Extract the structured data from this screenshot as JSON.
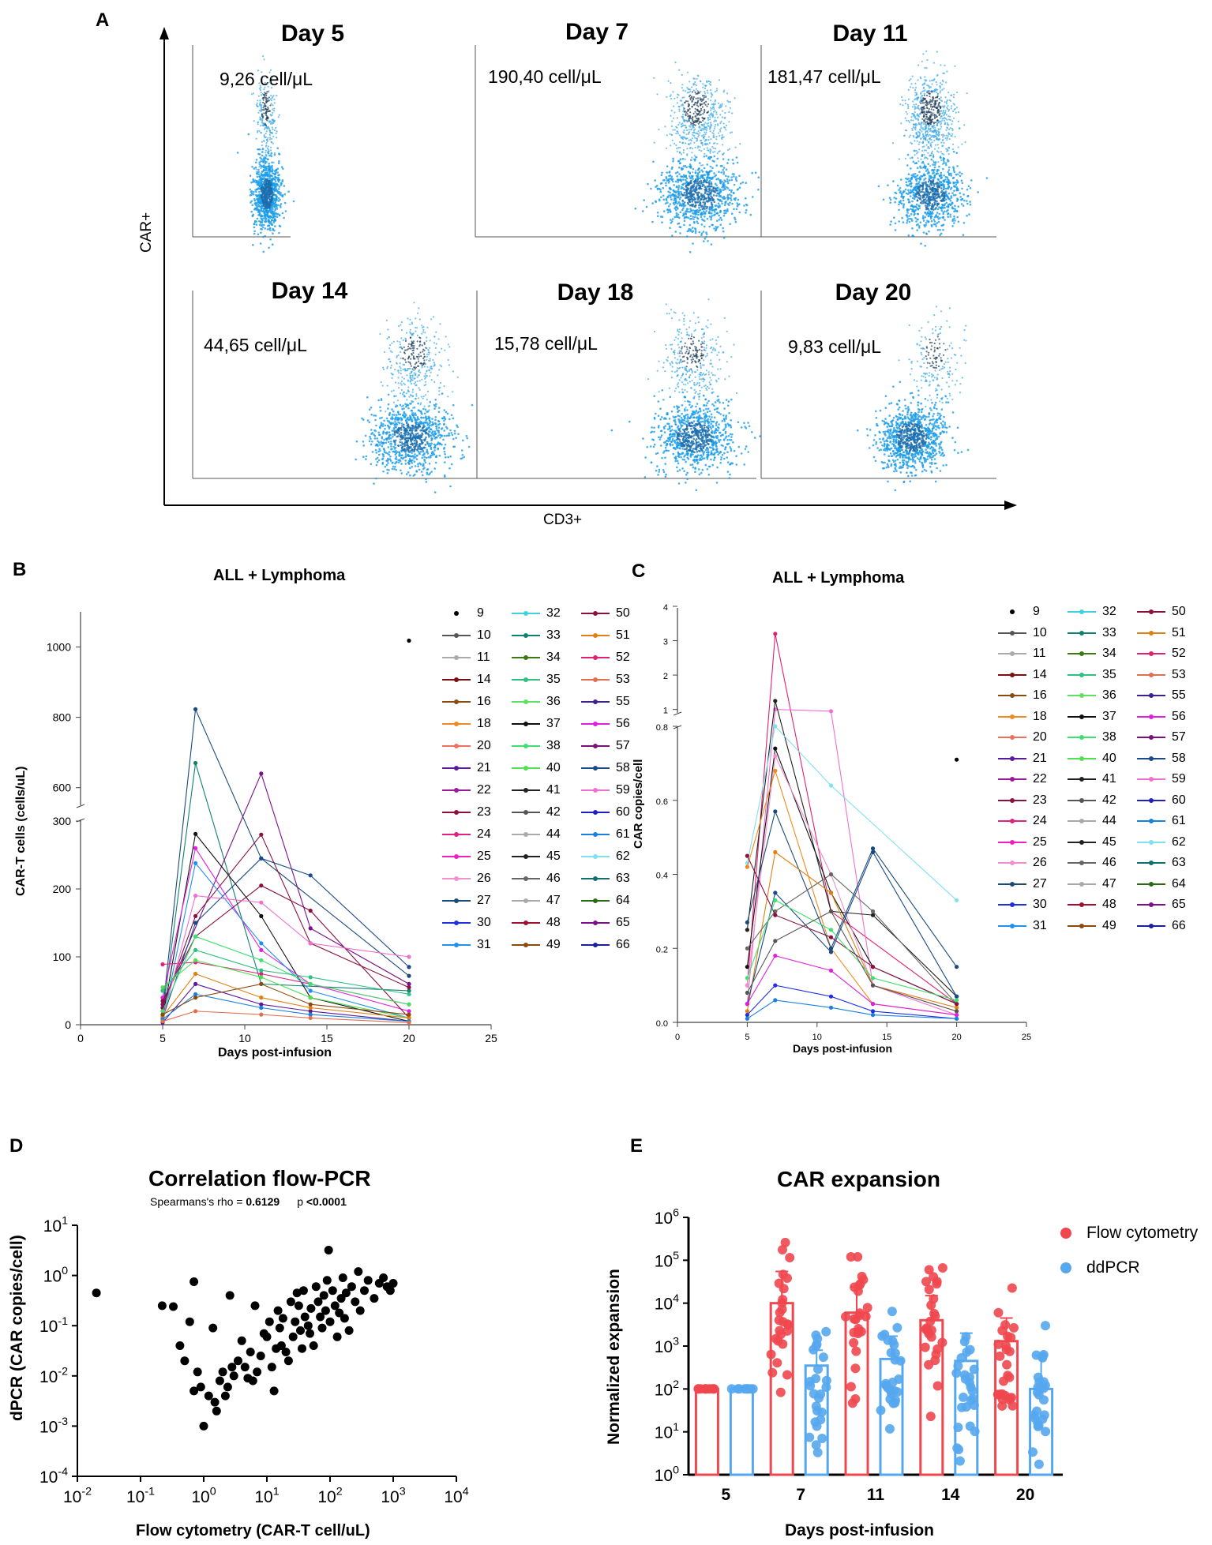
{
  "panel_labels": {
    "a": "A",
    "b": "B",
    "c": "C",
    "d": "D",
    "e": "E"
  },
  "colors": {
    "flow": "#f0474f",
    "pcr": "#55a7ee",
    "dot_dark": "#1b3a55",
    "dot_light": "#1a9ce8"
  },
  "panel_a": {
    "x_axis_label": "CD3+",
    "y_axis_label": "CAR+",
    "plots": [
      {
        "title": "Day 5",
        "value": "9,26 cell/μL"
      },
      {
        "title": "Day 7",
        "value": "190,40 cell/μL"
      },
      {
        "title": "Day 11",
        "value": "181,47 cell/μL"
      },
      {
        "title": "Day 14",
        "value": "44,65 cell/μL"
      },
      {
        "title": "Day 18",
        "value": "15,78 cell/μL"
      },
      {
        "title": "Day 20",
        "value": "9,83 cell/μL"
      }
    ]
  },
  "legend_patients": [
    "9",
    "10",
    "11",
    "14",
    "16",
    "18",
    "20",
    "21",
    "22",
    "23",
    "24",
    "25",
    "26",
    "27",
    "30",
    "31",
    "32",
    "33",
    "34",
    "35",
    "36",
    "37",
    "38",
    "40",
    "41",
    "42",
    "44",
    "45",
    "46",
    "47",
    "48",
    "49",
    "50",
    "51",
    "52",
    "53",
    "55",
    "56",
    "57",
    "58",
    "59",
    "60",
    "61",
    "62",
    "63",
    "64",
    "65",
    "66"
  ],
  "legend_colors": [
    "#000000",
    "#555555",
    "#aaaaaa",
    "#7a1010",
    "#8a4a10",
    "#f08a20",
    "#f07060",
    "#5a1a9a",
    "#9a1a9a",
    "#8a1040",
    "#e02080",
    "#f020c0",
    "#f090d0",
    "#1a4a7a",
    "#2030e0",
    "#2090f0",
    "#40d0e0",
    "#108070",
    "#3a7a10",
    "#30c080",
    "#60e060",
    "#111111",
    "#40e070",
    "#50e050",
    "#222222",
    "#555555",
    "#aaaaaa",
    "#222222",
    "#666666",
    "#aaaaaa",
    "#a01030",
    "#8a4a10",
    "#8a1040",
    "#e08010",
    "#e02070",
    "#e07050",
    "#40208a",
    "#e020e0",
    "#7a107a",
    "#1a4a8a",
    "#f070d0",
    "#2020c0",
    "#1a80e0",
    "#80e0f0",
    "#107070",
    "#2a6a10",
    "#7a108a",
    "#1a20a0"
  ],
  "chart_data": [
    {
      "panel": "B",
      "type": "line",
      "title": "ALL + Lymphoma",
      "xlabel": "Days post-infusion",
      "ylabel": "CAR-T cells (cells/uL)",
      "xlim": [
        0,
        25
      ],
      "x_ticks": [
        "0",
        "5",
        "10",
        "15",
        "20",
        "25"
      ],
      "y_break": [
        300,
        550
      ],
      "y_ticks_low": [
        "0",
        "100",
        "200",
        "300"
      ],
      "y_ticks_high": [
        "600",
        "800",
        "1000"
      ],
      "series": [
        {
          "name": "9",
          "x": [
            20
          ],
          "y": [
            1018
          ]
        },
        {
          "name": "27",
          "x": [
            5,
            7,
            11,
            20
          ],
          "y": [
            20,
            823,
            245,
            72
          ]
        },
        {
          "name": "33",
          "x": [
            5,
            7,
            11,
            20
          ],
          "y": [
            15,
            670,
            60,
            50
          ]
        },
        {
          "name": "65",
          "x": [
            5,
            11,
            14,
            20
          ],
          "y": [
            30,
            640,
            142,
            60
          ]
        },
        {
          "name": "37",
          "x": [
            5,
            7,
            11,
            14,
            20
          ],
          "y": [
            10,
            281,
            160,
            40,
            5
          ]
        },
        {
          "name": "23",
          "x": [
            5,
            7,
            11,
            14,
            20
          ],
          "y": [
            25,
            160,
            280,
            120,
            55
          ]
        },
        {
          "name": "58",
          "x": [
            5,
            7,
            11,
            14,
            20
          ],
          "y": [
            10,
            150,
            245,
            220,
            85
          ]
        },
        {
          "name": "56",
          "x": [
            5,
            7,
            11,
            14,
            20
          ],
          "y": [
            40,
            260,
            110,
            60,
            20
          ]
        },
        {
          "name": "31",
          "x": [
            5,
            7,
            11,
            14,
            20
          ],
          "y": [
            5,
            238,
            120,
            50,
            10
          ]
        },
        {
          "name": "50",
          "x": [
            5,
            7,
            11,
            14,
            20
          ],
          "y": [
            35,
            130,
            205,
            168,
            10
          ]
        },
        {
          "name": "24",
          "x": [
            5,
            7,
            11,
            20
          ],
          "y": [
            89,
            92,
            75,
            30
          ]
        },
        {
          "name": "59",
          "x": [
            5,
            7,
            11,
            14,
            20
          ],
          "y": [
            10,
            190,
            180,
            120,
            100
          ]
        },
        {
          "name": "40",
          "x": [
            5,
            7,
            11,
            14,
            20
          ],
          "y": [
            55,
            95,
            70,
            40,
            10
          ]
        },
        {
          "name": "21",
          "x": [
            5,
            7,
            11,
            14,
            20
          ],
          "y": [
            3,
            60,
            30,
            20,
            5
          ]
        },
        {
          "name": "38",
          "x": [
            5,
            7,
            11,
            14,
            20
          ],
          "y": [
            20,
            130,
            95,
            60,
            30
          ]
        },
        {
          "name": "51",
          "x": [
            5,
            7,
            11,
            14,
            20
          ],
          "y": [
            12,
            75,
            40,
            25,
            10
          ]
        },
        {
          "name": "61",
          "x": [
            5,
            7,
            11,
            14,
            20
          ],
          "y": [
            8,
            45,
            25,
            15,
            5
          ]
        },
        {
          "name": "35",
          "x": [
            5,
            7,
            11,
            14,
            20
          ],
          "y": [
            50,
            110,
            80,
            70,
            45
          ]
        },
        {
          "name": "16",
          "x": [
            5,
            7,
            11,
            14,
            20
          ],
          "y": [
            15,
            40,
            60,
            30,
            15
          ]
        },
        {
          "name": "53",
          "x": [
            5,
            7,
            11,
            14,
            20
          ],
          "y": [
            5,
            20,
            15,
            10,
            3
          ]
        }
      ]
    },
    {
      "panel": "C",
      "type": "line",
      "title": "ALL + Lymphoma",
      "xlabel": "Days post-infusion",
      "ylabel": "CAR copies/cell",
      "xlim": [
        0,
        25
      ],
      "x_ticks": [
        "0",
        "5",
        "10",
        "15",
        "20",
        "25"
      ],
      "y_break": [
        0.8,
        0.9
      ],
      "y_ticks_low": [
        "0.0",
        "0.2",
        "0.4",
        "0.6",
        "0.8"
      ],
      "y_ticks_high": [
        "1",
        "2",
        "3",
        "4"
      ],
      "series": [
        {
          "name": "9",
          "x": [
            20
          ],
          "y": [
            0.71
          ]
        },
        {
          "name": "52",
          "x": [
            5,
            7,
            11,
            20
          ],
          "y": [
            0.1,
            3.2,
            0.3,
            0.05
          ]
        },
        {
          "name": "59",
          "x": [
            5,
            7,
            11,
            14,
            20
          ],
          "y": [
            0.05,
            1.0,
            0.95,
            0.1,
            0.02
          ]
        },
        {
          "name": "45",
          "x": [
            5,
            7,
            11,
            14,
            20
          ],
          "y": [
            0.25,
            1.25,
            0.3,
            0.29,
            0.07
          ]
        },
        {
          "name": "62",
          "x": [
            5,
            7,
            11,
            20
          ],
          "y": [
            0.43,
            0.8,
            0.64,
            0.33
          ]
        },
        {
          "name": "37",
          "x": [
            5,
            7,
            11,
            14,
            20
          ],
          "y": [
            0.15,
            0.74,
            0.35,
            0.15,
            0.05
          ]
        },
        {
          "name": "26",
          "x": [
            5,
            7,
            11,
            14,
            20
          ],
          "y": [
            0.1,
            0.72,
            0.4,
            0.1,
            0.03
          ]
        },
        {
          "name": "18",
          "x": [
            5,
            7,
            11,
            14,
            20
          ],
          "y": [
            0.42,
            0.68,
            0.2,
            0.05,
            0.02
          ]
        },
        {
          "name": "27",
          "x": [
            5,
            7,
            11,
            14,
            20
          ],
          "y": [
            0.27,
            0.57,
            0.2,
            0.47,
            0.15
          ]
        },
        {
          "name": "51",
          "x": [
            5,
            7,
            11,
            14,
            20
          ],
          "y": [
            0.03,
            0.46,
            0.35,
            0.1,
            0.04
          ]
        },
        {
          "name": "58",
          "x": [
            5,
            7,
            11,
            14,
            20
          ],
          "y": [
            0.05,
            0.35,
            0.19,
            0.46,
            0.07
          ]
        },
        {
          "name": "46",
          "x": [
            5,
            7,
            11,
            14,
            20
          ],
          "y": [
            0.2,
            0.3,
            0.4,
            0.3,
            0.05
          ]
        },
        {
          "name": "23",
          "x": [
            5,
            7,
            11,
            14,
            20
          ],
          "y": [
            0.45,
            0.29,
            0.23,
            0.15,
            0.05
          ]
        },
        {
          "name": "38",
          "x": [
            5,
            7,
            11,
            14,
            20
          ],
          "y": [
            0.12,
            0.33,
            0.25,
            0.12,
            0.06
          ]
        },
        {
          "name": "42",
          "x": [
            5,
            7,
            11,
            14,
            20
          ],
          "y": [
            0.08,
            0.22,
            0.3,
            0.1,
            0.03
          ]
        },
        {
          "name": "56",
          "x": [
            5,
            7,
            11,
            14,
            20
          ],
          "y": [
            0.05,
            0.18,
            0.14,
            0.05,
            0.02
          ]
        },
        {
          "name": "30",
          "x": [
            5,
            7,
            11,
            14,
            20
          ],
          "y": [
            0.02,
            0.1,
            0.07,
            0.03,
            0.01
          ]
        },
        {
          "name": "61",
          "x": [
            5,
            7,
            11,
            14,
            20
          ],
          "y": [
            0.01,
            0.06,
            0.04,
            0.02,
            0.01
          ]
        }
      ]
    },
    {
      "panel": "D",
      "type": "scatter",
      "title": "Correlation flow-PCR",
      "subtitle_label": "Spearmans's rho = ",
      "rho": "0.6129",
      "p_label": "p ",
      "p_value": "<0.0001",
      "xlabel": "Flow cytometry (CAR-T cell/uL)",
      "ylabel": "dPCR (CAR copies/cell)",
      "x_scale": "log",
      "y_scale": "log",
      "x_ticks": [
        {
          "b": "10",
          "e": "-2"
        },
        {
          "b": "10",
          "e": "-1"
        },
        {
          "b": "10",
          "e": "0"
        },
        {
          "b": "10",
          "e": "1"
        },
        {
          "b": "10",
          "e": "2"
        },
        {
          "b": "10",
          "e": "3"
        },
        {
          "b": "10",
          "e": "4"
        }
      ],
      "y_ticks": [
        {
          "b": "10",
          "e": "1"
        },
        {
          "b": "10",
          "e": "0"
        },
        {
          "b": "10",
          "e": "-1"
        },
        {
          "b": "10",
          "e": "-2"
        },
        {
          "b": "10",
          "e": "-3"
        },
        {
          "b": "10",
          "e": "-4"
        }
      ],
      "points": [
        [
          0.02,
          0.45
        ],
        [
          0.22,
          0.25
        ],
        [
          0.33,
          0.24
        ],
        [
          0.42,
          0.04
        ],
        [
          0.5,
          0.02
        ],
        [
          0.6,
          0.12
        ],
        [
          0.7,
          0.75
        ],
        [
          0.8,
          0.012
        ],
        [
          0.7,
          0.005
        ],
        [
          0.9,
          0.006
        ],
        [
          1.0,
          0.001
        ],
        [
          1.2,
          0.004
        ],
        [
          1.4,
          0.09
        ],
        [
          1.5,
          0.003
        ],
        [
          1.6,
          0.002
        ],
        [
          1.8,
          0.008
        ],
        [
          2.0,
          0.012
        ],
        [
          2.2,
          0.004
        ],
        [
          2.4,
          0.006
        ],
        [
          2.6,
          0.4
        ],
        [
          2.8,
          0.015
        ],
        [
          3.0,
          0.01
        ],
        [
          3.5,
          0.02
        ],
        [
          4.0,
          0.05
        ],
        [
          4.5,
          0.015
        ],
        [
          5.0,
          0.009
        ],
        [
          5.5,
          0.03
        ],
        [
          6.0,
          0.008
        ],
        [
          6.5,
          0.25
        ],
        [
          7.0,
          0.012
        ],
        [
          8.0,
          0.025
        ],
        [
          9.0,
          0.07
        ],
        [
          10,
          0.06
        ],
        [
          11,
          0.12
        ],
        [
          12,
          0.015
        ],
        [
          13,
          0.005
        ],
        [
          14,
          0.035
        ],
        [
          15,
          0.2
        ],
        [
          16,
          0.09
        ],
        [
          17,
          0.04
        ],
        [
          18,
          0.14
        ],
        [
          20,
          0.03
        ],
        [
          22,
          0.02
        ],
        [
          24,
          0.3
        ],
        [
          26,
          0.06
        ],
        [
          28,
          0.12
        ],
        [
          30,
          0.45
        ],
        [
          32,
          0.25
        ],
        [
          34,
          0.08
        ],
        [
          36,
          0.035
        ],
        [
          38,
          0.5
        ],
        [
          40,
          0.15
        ],
        [
          45,
          0.1
        ],
        [
          48,
          0.07
        ],
        [
          50,
          0.22
        ],
        [
          55,
          0.04
        ],
        [
          60,
          0.6
        ],
        [
          65,
          0.3
        ],
        [
          70,
          0.15
        ],
        [
          75,
          0.09
        ],
        [
          80,
          0.4
        ],
        [
          85,
          0.2
        ],
        [
          90,
          0.8
        ],
        [
          95,
          3.2
        ],
        [
          100,
          0.12
        ],
        [
          110,
          0.5
        ],
        [
          120,
          0.25
        ],
        [
          130,
          0.06
        ],
        [
          140,
          0.18
        ],
        [
          150,
          0.35
        ],
        [
          160,
          0.9
        ],
        [
          170,
          0.14
        ],
        [
          180,
          0.45
        ],
        [
          200,
          0.08
        ],
        [
          220,
          0.6
        ],
        [
          250,
          0.3
        ],
        [
          280,
          1.2
        ],
        [
          300,
          0.2
        ],
        [
          350,
          0.5
        ],
        [
          400,
          0.8
        ],
        [
          500,
          0.35
        ],
        [
          600,
          0.7
        ],
        [
          700,
          0.9
        ],
        [
          800,
          0.6
        ],
        [
          900,
          0.5
        ],
        [
          1000,
          0.7
        ]
      ]
    },
    {
      "panel": "E",
      "type": "bar",
      "title": "CAR expansion",
      "xlabel": "Days post-infusion",
      "ylabel": "Normalized expansion",
      "y_scale": "log",
      "ylim": [
        1,
        1000000
      ],
      "categories": [
        "5",
        "7",
        "11",
        "14",
        "20"
      ],
      "y_ticks": [
        {
          "b": "10",
          "e": "6"
        },
        {
          "b": "10",
          "e": "5"
        },
        {
          "b": "10",
          "e": "4"
        },
        {
          "b": "10",
          "e": "3"
        },
        {
          "b": "10",
          "e": "2"
        },
        {
          "b": "10",
          "e": "1"
        },
        {
          "b": "10",
          "e": "0"
        }
      ],
      "series": [
        {
          "name": "Flow cytometry",
          "values": [
            100,
            10000,
            6000,
            4000,
            1300
          ],
          "err_hi": [
            100,
            55000,
            24000,
            15000,
            4500
          ]
        },
        {
          "name": "ddPCR",
          "values": [
            100,
            350,
            500,
            450,
            100
          ],
          "err_hi": [
            100,
            800,
            1700,
            2000,
            600
          ]
        }
      ]
    }
  ]
}
